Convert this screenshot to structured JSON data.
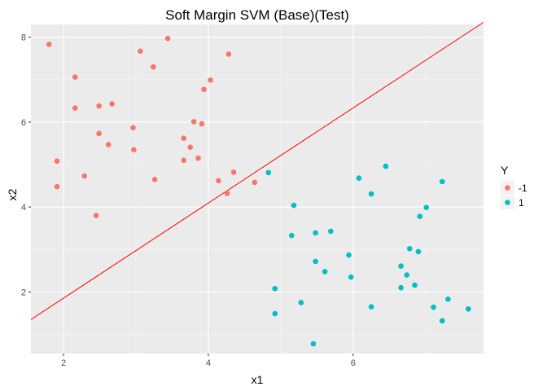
{
  "chart_data": {
    "type": "scatter",
    "title": "Soft Margin SVM (Base)(Test)",
    "xlabel": "x1",
    "ylabel": "x2",
    "xlim": [
      1.55,
      7.8
    ],
    "ylim": [
      0.55,
      8.3
    ],
    "xticks": [
      2,
      4,
      6
    ],
    "yticks": [
      2,
      4,
      6,
      8
    ],
    "xtick_labels": [
      "2",
      "4",
      "6"
    ],
    "ytick_labels": [
      "2",
      "4",
      "6",
      "8"
    ],
    "grid": true,
    "background": "#ebebeb",
    "legend": {
      "title": "Y",
      "placement": "right",
      "entries": [
        {
          "label": "-1",
          "color": "#f8766d"
        },
        {
          "label": "1",
          "color": "#00bfc4"
        }
      ]
    },
    "decision_line": {
      "color": "#ff0000",
      "points": [
        [
          1.55,
          1.35
        ],
        [
          7.8,
          8.35
        ]
      ]
    },
    "series": [
      {
        "name": "-1",
        "color": "#f8766d",
        "points": [
          [
            1.8,
            7.83
          ],
          [
            1.91,
            5.08
          ],
          [
            1.91,
            4.48
          ],
          [
            2.16,
            7.06
          ],
          [
            2.16,
            6.33
          ],
          [
            2.29,
            4.73
          ],
          [
            2.45,
            3.8
          ],
          [
            2.49,
            6.38
          ],
          [
            2.49,
            5.73
          ],
          [
            2.62,
            5.47
          ],
          [
            2.67,
            6.43
          ],
          [
            2.96,
            5.87
          ],
          [
            2.97,
            5.35
          ],
          [
            3.06,
            7.67
          ],
          [
            3.24,
            7.3
          ],
          [
            3.26,
            4.65
          ],
          [
            3.44,
            7.97
          ],
          [
            3.66,
            5.62
          ],
          [
            3.66,
            5.1
          ],
          [
            3.75,
            5.41
          ],
          [
            3.8,
            6.01
          ],
          [
            3.86,
            5.15
          ],
          [
            3.91,
            5.96
          ],
          [
            3.94,
            6.77
          ],
          [
            4.03,
            6.99
          ],
          [
            4.14,
            4.62
          ],
          [
            4.26,
            4.32
          ],
          [
            4.28,
            7.6
          ],
          [
            4.35,
            4.82
          ],
          [
            4.64,
            4.58
          ]
        ]
      },
      {
        "name": "1",
        "color": "#00bfc4",
        "points": [
          [
            4.83,
            4.81
          ],
          [
            4.92,
            2.08
          ],
          [
            4.92,
            1.49
          ],
          [
            5.15,
            3.33
          ],
          [
            5.18,
            4.04
          ],
          [
            5.28,
            1.75
          ],
          [
            5.45,
            0.78
          ],
          [
            5.48,
            3.39
          ],
          [
            5.48,
            2.72
          ],
          [
            5.61,
            2.48
          ],
          [
            5.69,
            3.43
          ],
          [
            5.94,
            2.87
          ],
          [
            5.97,
            2.35
          ],
          [
            6.08,
            4.68
          ],
          [
            6.25,
            4.31
          ],
          [
            6.25,
            1.65
          ],
          [
            6.45,
            4.96
          ],
          [
            6.66,
            2.61
          ],
          [
            6.66,
            2.1
          ],
          [
            6.74,
            2.4
          ],
          [
            6.78,
            3.02
          ],
          [
            6.85,
            2.16
          ],
          [
            6.9,
            2.95
          ],
          [
            6.92,
            3.78
          ],
          [
            7.01,
            3.99
          ],
          [
            7.11,
            1.64
          ],
          [
            7.23,
            4.6
          ],
          [
            7.23,
            1.32
          ],
          [
            7.31,
            1.83
          ],
          [
            7.59,
            1.6
          ]
        ]
      }
    ]
  }
}
